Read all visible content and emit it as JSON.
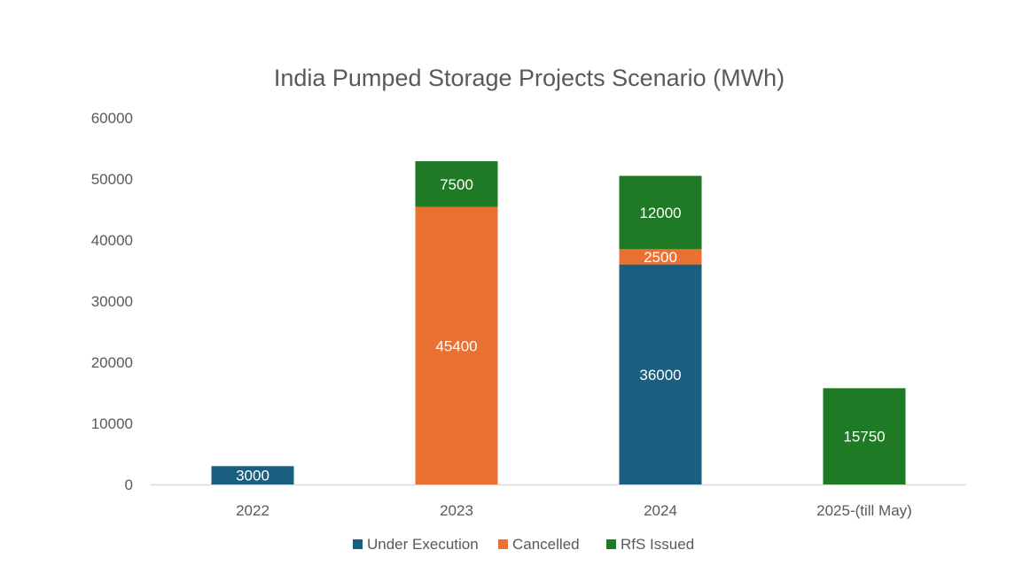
{
  "chart_data": {
    "type": "bar",
    "stacked": true,
    "title": "India Pumped Storage Projects Scenario (MWh)",
    "xlabel": "",
    "ylabel": "",
    "categories": [
      "2022",
      "2023",
      "2024",
      "2025-(till May)"
    ],
    "series": [
      {
        "name": "Under Execution",
        "color": "#1a5e80",
        "values": [
          3000,
          0,
          36000,
          0
        ]
      },
      {
        "name": "Cancelled",
        "color": "#e97132",
        "values": [
          0,
          45400,
          2500,
          0
        ]
      },
      {
        "name": "RfS Issued",
        "color": "#1f7a26",
        "values": [
          0,
          7500,
          12000,
          15750
        ]
      }
    ],
    "ylim": [
      0,
      60000
    ],
    "yticks": [
      0,
      10000,
      20000,
      30000,
      40000,
      50000,
      60000
    ],
    "grid": false,
    "legend": "bottom-center",
    "data_labels": true
  }
}
